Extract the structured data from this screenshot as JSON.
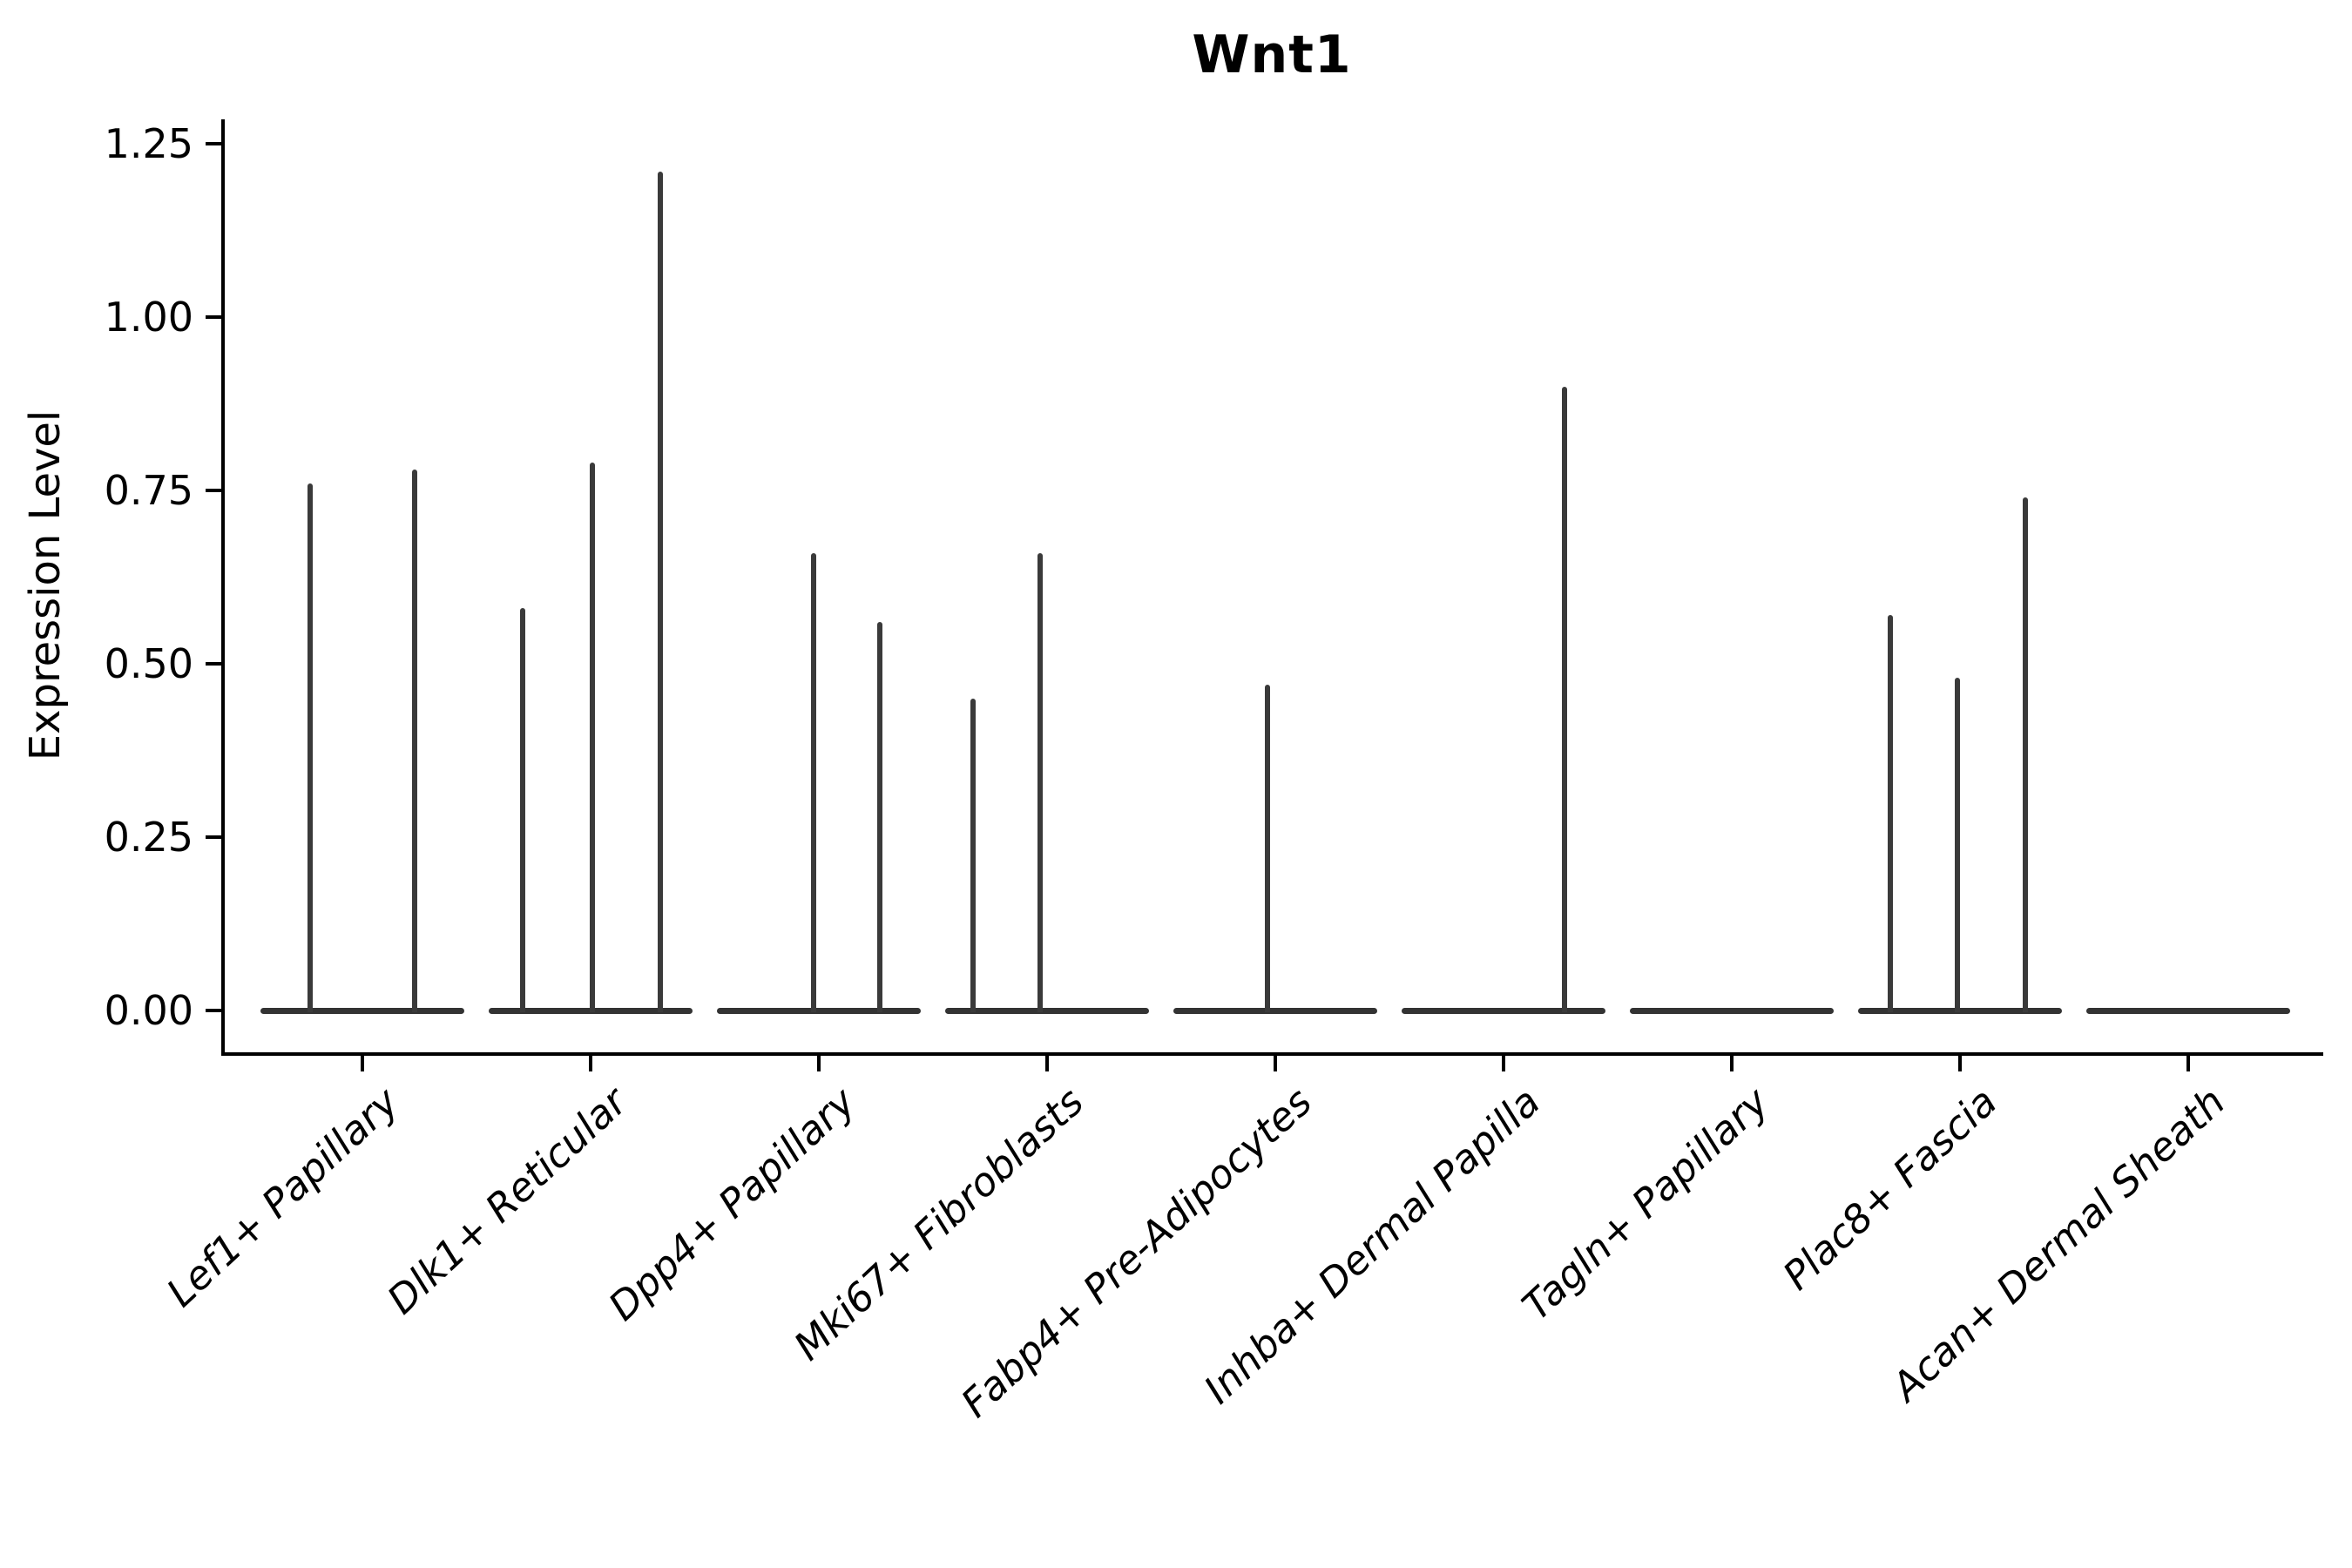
{
  "chart_data": {
    "type": "violin",
    "title": "Wnt1",
    "ylabel": "Expression Level",
    "xlabel": "",
    "ylim": [
      -0.06,
      1.285
    ],
    "grid": false,
    "legend_position": "none",
    "yticks": [
      {
        "value": 0.0,
        "label": "0.00"
      },
      {
        "value": 0.25,
        "label": "0.25"
      },
      {
        "value": 0.5,
        "label": "0.50"
      },
      {
        "value": 0.75,
        "label": "0.75"
      },
      {
        "value": 1.0,
        "label": "1.00"
      },
      {
        "value": 1.25,
        "label": "1.25"
      }
    ],
    "categories": [
      "Lef1+ Papillary",
      "Dlk1+ Reticular",
      "Dpp4+ Papillary",
      "Mki67+ Fibroblasts",
      "Fabp4+ Pre-Adipocytes",
      "Inhba+ Dermal Papilla",
      "Tagln+ Papillary",
      "Plac8+ Fascia",
      "Acan+ Dermal Sheath"
    ],
    "groups": [
      {
        "label": "Lef1+ Papillary",
        "baseline": 0,
        "spikes": [
          {
            "dx": -60,
            "value": 0.76
          },
          {
            "dx": 60,
            "value": 0.78
          }
        ]
      },
      {
        "label": "Dlk1+ Reticular",
        "baseline": 0,
        "spikes": [
          {
            "dx": -78,
            "value": 0.58
          },
          {
            "dx": 2,
            "value": 0.79
          },
          {
            "dx": 80,
            "value": 1.21
          }
        ]
      },
      {
        "label": "Dpp4+ Papillary",
        "baseline": 0,
        "spikes": [
          {
            "dx": -6,
            "value": 0.66
          },
          {
            "dx": 70,
            "value": 0.56
          }
        ]
      },
      {
        "label": "Mki67+ Fibroblasts",
        "baseline": 0,
        "spikes": [
          {
            "dx": -85,
            "value": 0.45
          },
          {
            "dx": -8,
            "value": 0.66
          }
        ]
      },
      {
        "label": "Fabp4+ Pre-Adipocytes",
        "baseline": 0,
        "spikes": [
          {
            "dx": -9,
            "value": 0.47
          }
        ]
      },
      {
        "label": "Inhba+ Dermal Papilla",
        "baseline": 0,
        "spikes": [
          {
            "dx": 70,
            "value": 0.9
          }
        ]
      },
      {
        "label": "Tagln+ Papillary",
        "baseline": 0,
        "spikes": []
      },
      {
        "label": "Plac8+ Fascia",
        "baseline": 0,
        "spikes": [
          {
            "dx": -80,
            "value": 0.57
          },
          {
            "dx": -3,
            "value": 0.48
          },
          {
            "dx": 75,
            "value": 0.74
          }
        ]
      },
      {
        "label": "Acan+ Dermal Sheath",
        "baseline": 0,
        "spikes": []
      }
    ],
    "colors": {
      "violin": "#3a3a3a",
      "baseline": "#333333",
      "axis": "#000000",
      "text": "#000000"
    }
  }
}
